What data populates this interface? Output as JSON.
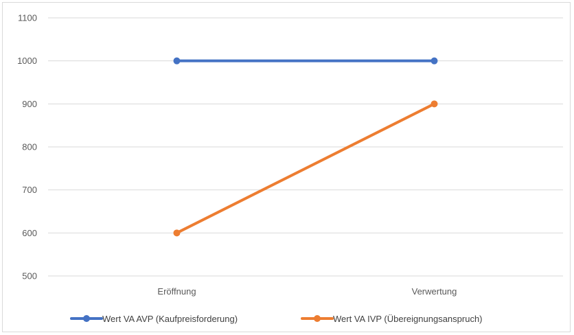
{
  "chart_data": {
    "type": "line",
    "title": "",
    "xlabel": "",
    "ylabel": "",
    "categories": [
      "Eröffnung",
      "Verwertung"
    ],
    "ylim": [
      500,
      1100
    ],
    "yticks": [
      500,
      600,
      700,
      800,
      900,
      1000,
      1100
    ],
    "grid": true,
    "legend_position": "bottom",
    "series": [
      {
        "name": "Wert VA AVP (Kaufpreisforderung)",
        "values": [
          1000,
          1000
        ],
        "color": "#4472C4"
      },
      {
        "name": "Wert VA IVP (Übereignungsanspruch)",
        "values": [
          600,
          900
        ],
        "color": "#ED7D31"
      }
    ]
  }
}
